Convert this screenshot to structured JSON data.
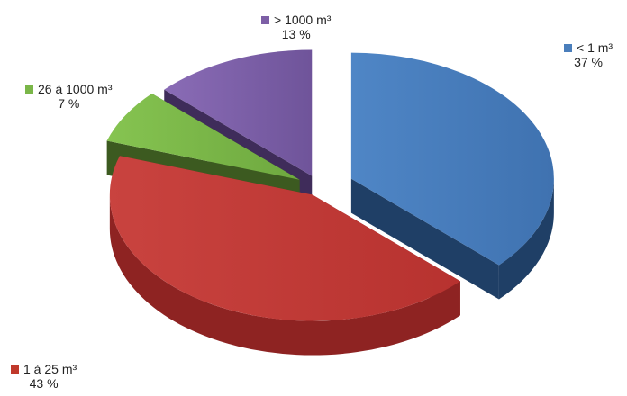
{
  "chart_data": {
    "type": "pie",
    "title": "",
    "slices": [
      {
        "label": "< 1 m³",
        "value": 37,
        "pct_text": "37 %",
        "color": "#4a7ebb"
      },
      {
        "label": "1 à 25 m³",
        "value": 43,
        "pct_text": "43 %",
        "color": "#c0392b"
      },
      {
        "label": "26 à 1000 m³",
        "value": 7,
        "pct_text": "7 %",
        "color": "#7ab648"
      },
      {
        "label": "> 1000 m³",
        "value": 13,
        "pct_text": "13 %",
        "color": "#7d5fa6"
      }
    ],
    "style": "3d-exploded"
  }
}
